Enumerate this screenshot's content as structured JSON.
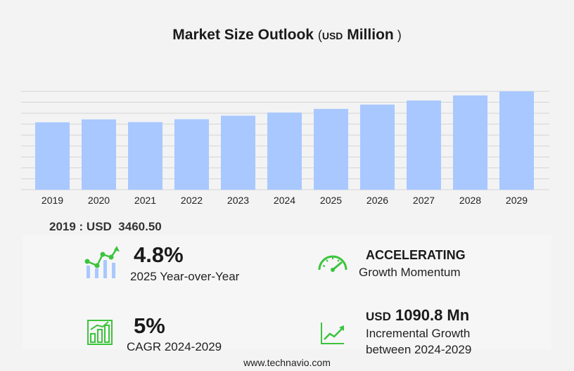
{
  "title": {
    "main": "Market Size Outlook",
    "unit_small": "USD",
    "unit_big": "Million"
  },
  "chart_data": {
    "type": "bar",
    "categories": [
      "2019",
      "2020",
      "2021",
      "2022",
      "2023",
      "2024",
      "2025",
      "2026",
      "2027",
      "2028",
      "2029"
    ],
    "values": [
      3460.5,
      3610,
      3470,
      3620,
      3800,
      3960,
      4150,
      4370,
      4580,
      4840,
      5050
    ],
    "ylim": [
      0,
      5050
    ],
    "gridlines": 9,
    "bar_color": "#a8c8ff",
    "grid": true
  },
  "base_year": {
    "label": "2019 : USD",
    "value": "3460.50"
  },
  "kpis": {
    "yoy": {
      "value": "4.8%",
      "label": "2025 Year-over-Year"
    },
    "momentum": {
      "value": "ACCELERATING",
      "label": "Growth Momentum"
    },
    "cagr": {
      "value": "5%",
      "label": "CAGR 2024-2029"
    },
    "incremental": {
      "unit": "USD",
      "value": "1090.8 Mn",
      "label_line1": "Incremental Growth",
      "label_line2": "between 2024-2029"
    }
  },
  "colors": {
    "icon_green": "#3cc43c",
    "icon_blue": "#a8c8ff"
  },
  "icons": [
    "growth-chart-icon",
    "speedometer-icon",
    "bar-growth-icon",
    "trend-line-icon"
  ],
  "footer": "www.technavio.com"
}
